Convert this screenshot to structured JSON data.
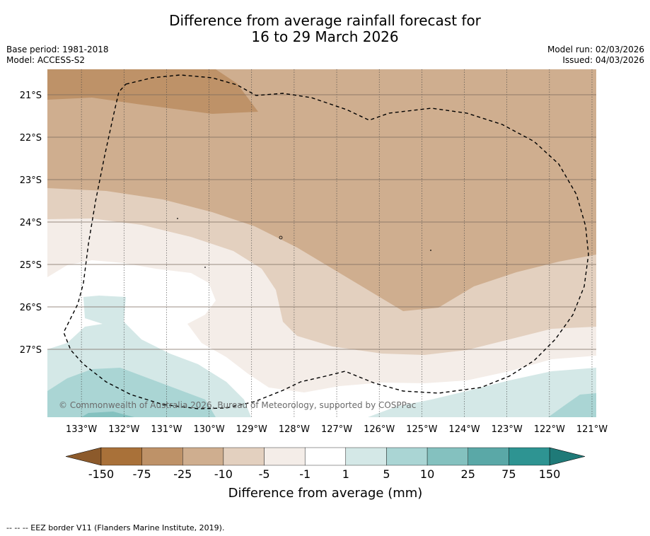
{
  "header": {
    "title_line1": "Difference from average rainfall forecast for",
    "title_line2": "16 to 29 March 2026",
    "base_period": "Base period: 1981-2018",
    "model": "Model: ACCESS-S2",
    "model_run": "Model run: 02/03/2026",
    "issued": "Issued: 04/03/2026"
  },
  "chart_data": {
    "type": "heatmap",
    "title": "Difference from average rainfall forecast for 16 to 29 March 2026",
    "x_ticks": [
      "133°W",
      "132°W",
      "131°W",
      "130°W",
      "129°W",
      "128°W",
      "127°W",
      "126°W",
      "125°W",
      "124°W",
      "123°W",
      "122°W",
      "121°W"
    ],
    "x_tick_values": [
      -133,
      -132,
      -131,
      -130,
      -129,
      -128,
      -127,
      -126,
      -125,
      -124,
      -123,
      -122,
      -121
    ],
    "y_ticks": [
      "21°S",
      "22°S",
      "23°S",
      "24°S",
      "25°S",
      "26°S",
      "27°S"
    ],
    "y_tick_values": [
      -21,
      -22,
      -23,
      -24,
      -25,
      -26,
      -27
    ],
    "xlim": [
      -133.8,
      -120.9
    ],
    "ylim": [
      -28.6,
      -20.4
    ],
    "grid": true,
    "colorbar": {
      "label": "Difference from average (mm)",
      "tick_labels": [
        "-150",
        "-75",
        "-25",
        "-10",
        "-5",
        "-1",
        "1",
        "5",
        "10",
        "25",
        "75",
        "150"
      ],
      "colors": [
        "#a97139",
        "#be9268",
        "#cfae8f",
        "#e3d0bf",
        "#f4ede8",
        "#ffffff",
        "#d4e8e7",
        "#aad5d4",
        "#84c1bf",
        "#5aa8a7",
        "#2e9492"
      ],
      "extend_low_color": "#8c5a2b",
      "extend_high_color": "#1f7a78"
    },
    "bands_approx": [
      {
        "class": "-25 to -10",
        "region": "north and central-east (about 21°S to 25.5°S, 124°W to 121°W extending to 26°S)"
      },
      {
        "class": "-75 to -25",
        "region": "small patch in north-west near 21°S, 133°W to 129°W"
      },
      {
        "class": "-10 to -5",
        "region": "band west near 23.3°S to 24°S and east 25°S to 26.5°S"
      },
      {
        "class": "-5 to -1",
        "region": "band near 24°S to 25°S west and 26.5°S to 27.5°S east"
      },
      {
        "class": "-1 to 1",
        "region": "south-west near 25°S to 28°S"
      },
      {
        "class": "1 to 5",
        "region": "south-west near 26°S to 28°S and south-east near 28°S"
      },
      {
        "class": "5 to 10",
        "region": "far south-west corner near 28°S"
      }
    ],
    "overlay": "EEZ border (dashed)"
  },
  "credit": "© Commonwealth of Australia 2026, Bureau of Meteorology, supported by COSPPac",
  "footnote": "--  --  -- EEZ border V11 (Flanders Marine Institute, 2019)."
}
